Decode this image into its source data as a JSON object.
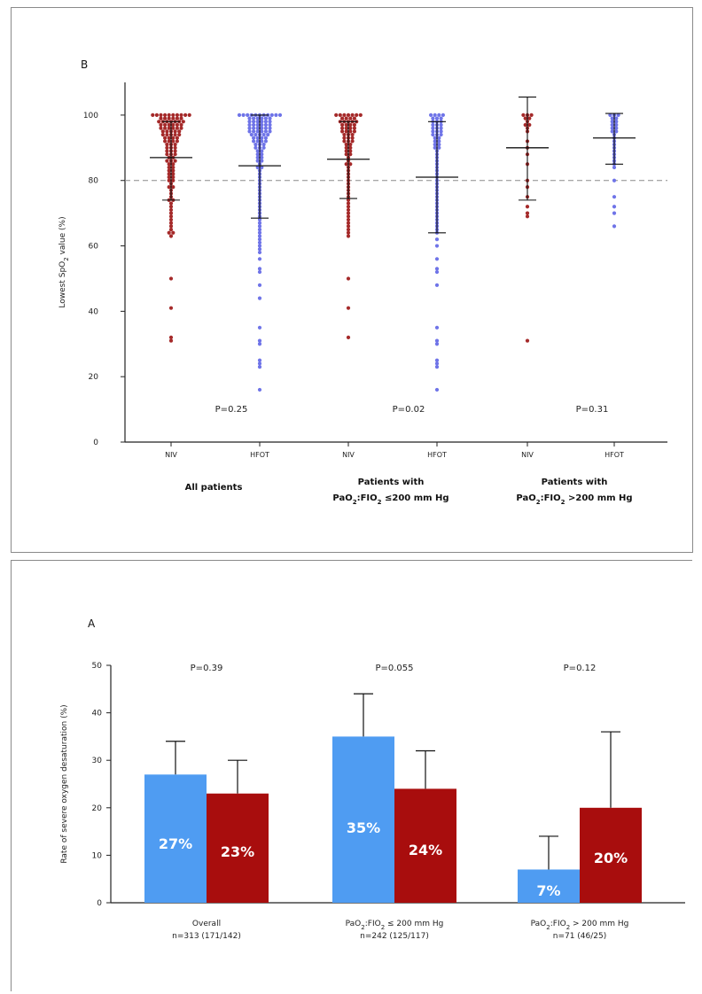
{
  "chart_data": [
    {
      "type": "scatter",
      "panel_label": "B",
      "ylabel": "Lowest SpO",
      "ylabel_sub": "2",
      "ylabel_tail": " value (%)",
      "ylim": [
        0,
        110
      ],
      "yticks": [
        "0",
        "20",
        "40",
        "60",
        "80",
        "100"
      ],
      "reference_line": 80,
      "grid": false,
      "colors": {
        "NIV": "#a52a2a",
        "HFOT": "#6f74e8"
      },
      "groups": [
        {
          "name": "All patients",
          "name_lines": [
            "All patients"
          ],
          "p_value": "P=0.25",
          "series": [
            {
              "label": "NIV",
              "median": 87,
              "upper": 98,
              "lower": 74,
              "points": [
                100,
                100,
                100,
                100,
                100,
                100,
                100,
                100,
                100,
                100,
                99,
                99,
                99,
                99,
                99,
                99,
                98,
                98,
                98,
                98,
                98,
                98,
                98,
                97,
                97,
                97,
                97,
                97,
                97,
                96,
                96,
                96,
                96,
                96,
                96,
                95,
                95,
                95,
                95,
                95,
                94,
                94,
                94,
                94,
                94,
                93,
                93,
                93,
                93,
                92,
                92,
                92,
                92,
                91,
                91,
                91,
                90,
                90,
                90,
                89,
                89,
                89,
                88,
                88,
                88,
                87,
                87,
                86,
                86,
                86,
                85,
                85,
                84,
                84,
                83,
                83,
                82,
                82,
                81,
                81,
                80,
                80,
                79,
                78,
                78,
                77,
                76,
                75,
                74,
                74,
                73,
                72,
                71,
                70,
                69,
                68,
                67,
                66,
                65,
                64,
                64,
                63,
                50,
                41,
                32,
                31
              ]
            },
            {
              "label": "HFOT",
              "median": 84.5,
              "upper": 100,
              "lower": 68.5,
              "points": [
                100,
                100,
                100,
                100,
                100,
                100,
                100,
                100,
                100,
                100,
                100,
                99,
                99,
                99,
                99,
                99,
                99,
                98,
                98,
                98,
                98,
                98,
                98,
                97,
                97,
                97,
                97,
                97,
                97,
                96,
                96,
                96,
                96,
                96,
                96,
                95,
                95,
                95,
                95,
                95,
                95,
                94,
                94,
                94,
                94,
                94,
                93,
                93,
                93,
                93,
                92,
                92,
                92,
                92,
                91,
                91,
                91,
                90,
                90,
                90,
                89,
                89,
                88,
                88,
                87,
                87,
                86,
                86,
                85,
                84,
                84,
                83,
                82,
                81,
                80,
                79,
                78,
                77,
                76,
                75,
                74,
                73,
                72,
                71,
                70,
                69,
                68,
                67,
                66,
                65,
                64,
                63,
                62,
                61,
                60,
                59,
                58,
                56,
                53,
                52,
                48,
                44,
                35,
                31,
                30,
                25,
                24,
                23,
                16
              ]
            }
          ]
        },
        {
          "name": "Patients with PaO2:FIO2 ≤200 mm Hg",
          "name_lines": [
            "Patients with",
            "PaO",
            "2",
            ":FIO",
            "2",
            " ≤200 mm Hg"
          ],
          "p_value": "P=0.02",
          "series": [
            {
              "label": "NIV",
              "median": 86.5,
              "upper": 98,
              "lower": 74.5,
              "points": [
                100,
                100,
                100,
                100,
                100,
                100,
                100,
                99,
                99,
                99,
                99,
                98,
                98,
                98,
                98,
                98,
                97,
                97,
                97,
                97,
                96,
                96,
                96,
                96,
                95,
                95,
                95,
                95,
                94,
                94,
                94,
                93,
                93,
                93,
                92,
                92,
                92,
                91,
                91,
                90,
                90,
                89,
                89,
                88,
                88,
                87,
                86,
                85,
                85,
                84,
                83,
                82,
                81,
                80,
                79,
                78,
                77,
                76,
                75,
                74,
                73,
                72,
                71,
                70,
                69,
                68,
                67,
                66,
                65,
                64,
                63,
                50,
                41,
                32
              ]
            },
            {
              "label": "HFOT",
              "median": 81,
              "upper": 98,
              "lower": 64,
              "points": [
                100,
                100,
                100,
                100,
                99,
                99,
                99,
                98,
                98,
                98,
                97,
                97,
                97,
                96,
                96,
                96,
                95,
                95,
                95,
                94,
                94,
                94,
                93,
                93,
                92,
                92,
                91,
                91,
                90,
                90,
                89,
                88,
                87,
                86,
                85,
                84,
                83,
                82,
                81,
                80,
                79,
                78,
                77,
                76,
                75,
                74,
                73,
                72,
                71,
                70,
                69,
                68,
                67,
                66,
                65,
                64,
                62,
                60,
                56,
                53,
                52,
                48,
                35,
                31,
                30,
                25,
                24,
                23,
                16
              ]
            }
          ]
        },
        {
          "name": "Patients with PaO2:FIO2 >200 mm Hg",
          "name_lines": [
            "Patients with",
            "PaO",
            "2",
            ":FIO",
            "2",
            " >200 mm Hg"
          ],
          "p_value": "P=0.31",
          "series": [
            {
              "label": "NIV",
              "median": 90,
              "upper": 105.5,
              "lower": 74,
              "points": [
                100,
                100,
                100,
                99,
                99,
                98,
                97,
                97,
                96,
                95,
                92,
                90,
                88,
                85,
                80,
                78,
                75,
                72,
                70,
                69,
                31
              ]
            },
            {
              "label": "HFOT",
              "median": 93,
              "upper": 100.5,
              "lower": 85,
              "points": [
                100,
                100,
                100,
                99,
                99,
                98,
                98,
                97,
                97,
                96,
                96,
                95,
                95,
                94,
                93,
                92,
                91,
                90,
                89,
                88,
                87,
                86,
                85,
                84,
                80,
                75,
                72,
                70,
                66
              ]
            }
          ]
        }
      ]
    },
    {
      "type": "bar",
      "panel_label": "A",
      "ylabel": "Rate of severe oxygen desaturation (%)",
      "ylim": [
        0,
        50
      ],
      "yticks": [
        "0",
        "10",
        "20",
        "30",
        "40",
        "50"
      ],
      "grid": false,
      "colors": {
        "first": "#4f9cf2",
        "second": "#a80d0d"
      },
      "groups": [
        {
          "name": "Overall",
          "name_lines": [
            "Overall",
            "",
            "",
            "",
            "",
            "n=313 (171/142)"
          ],
          "p_value": "P=0.39",
          "bars": [
            {
              "value": 27,
              "error": 34,
              "label": "27%"
            },
            {
              "value": 23,
              "error": 30,
              "label": "23%"
            }
          ]
        },
        {
          "name": "PaO2:FIO2 ≤ 200 mm Hg",
          "name_lines": [
            "PaO",
            "2",
            ":FIO",
            "2",
            " ≤ 200 mm Hg",
            "n=242 (125/117)"
          ],
          "p_value": "P=0.055",
          "bars": [
            {
              "value": 35,
              "error": 44,
              "label": "35%"
            },
            {
              "value": 24,
              "error": 32,
              "label": "24%"
            }
          ]
        },
        {
          "name": "PaO2:FIO2 > 200 mm Hg",
          "name_lines": [
            "PaO",
            "2",
            ":FIO",
            "2",
            " > 200 mm Hg",
            "n=71 (46/25)"
          ],
          "p_value": "P=0.12",
          "bars": [
            {
              "value": 7,
              "error": 14,
              "label": "7%"
            },
            {
              "value": 20,
              "error": 36,
              "label": "20%"
            }
          ]
        }
      ]
    }
  ]
}
